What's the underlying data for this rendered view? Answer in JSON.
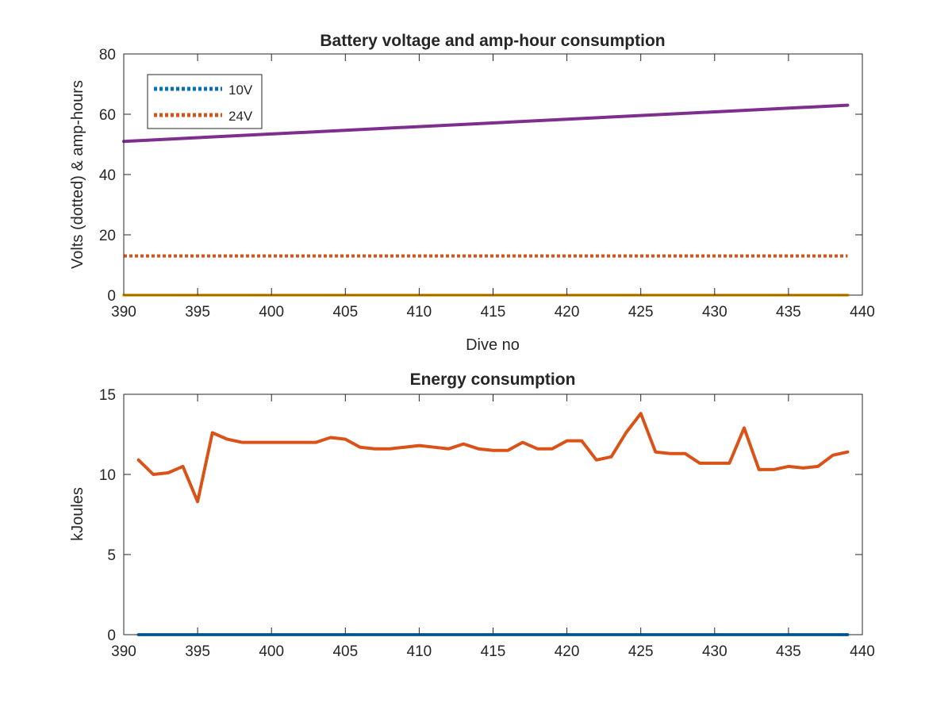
{
  "chart_data": [
    {
      "type": "line",
      "title": "Battery voltage and amp-hour consumption",
      "xlabel": "Dive no",
      "ylabel": "Volts (dotted) & amp-hours",
      "xlim": [
        390,
        440
      ],
      "ylim": [
        0,
        80
      ],
      "xticks": [
        390,
        395,
        400,
        405,
        410,
        415,
        420,
        425,
        430,
        435,
        440
      ],
      "yticks": [
        0,
        20,
        40,
        60,
        80
      ],
      "grid": false,
      "legend": {
        "placement": "top-left",
        "entries": [
          "10V",
          "24V"
        ]
      },
      "series": [
        {
          "name": "10V",
          "style": "dotted",
          "color": "#0072BD",
          "x": [
            390,
            439
          ],
          "y": [
            0,
            0
          ]
        },
        {
          "name": "24V",
          "style": "dotted",
          "color": "#D95319",
          "x": [
            390,
            439
          ],
          "y": [
            13,
            13
          ]
        },
        {
          "style": "solid",
          "color": "#EDB120",
          "x": [
            390,
            439
          ],
          "y": [
            0,
            0
          ]
        },
        {
          "style": "solid",
          "color": "#7E2F8E",
          "x": [
            390,
            439
          ],
          "y": [
            51,
            63
          ]
        }
      ]
    },
    {
      "type": "line",
      "title": "Energy consumption",
      "xlabel": "",
      "ylabel": "kJoules",
      "xlim": [
        390,
        440
      ],
      "ylim": [
        0,
        15
      ],
      "xticks": [
        390,
        395,
        400,
        405,
        410,
        415,
        420,
        425,
        430,
        435,
        440
      ],
      "yticks": [
        0,
        5,
        10,
        15
      ],
      "grid": false,
      "series": [
        {
          "style": "solid",
          "color": "#0072BD",
          "x": [
            391,
            439
          ],
          "y": [
            0,
            0
          ]
        },
        {
          "style": "solid",
          "color": "#D95319",
          "x": [
            391,
            392,
            393,
            394,
            395,
            396,
            397,
            398,
            399,
            400,
            401,
            402,
            403,
            404,
            405,
            406,
            407,
            408,
            409,
            410,
            411,
            412,
            413,
            414,
            415,
            416,
            417,
            418,
            419,
            420,
            421,
            422,
            423,
            424,
            425,
            426,
            427,
            428,
            429,
            430,
            431,
            432,
            433,
            434,
            435,
            436,
            437,
            438,
            439
          ],
          "y": [
            10.9,
            10.0,
            10.1,
            10.5,
            8.3,
            12.6,
            12.2,
            12.0,
            12.0,
            12.0,
            12.0,
            12.0,
            12.0,
            12.3,
            12.2,
            11.7,
            11.6,
            11.6,
            11.7,
            11.8,
            11.7,
            11.6,
            11.9,
            11.6,
            11.5,
            11.5,
            12.0,
            11.6,
            11.6,
            12.1,
            12.1,
            10.9,
            11.1,
            12.6,
            13.8,
            11.4,
            11.3,
            11.3,
            10.7,
            10.7,
            10.7,
            12.9,
            10.3,
            10.3,
            10.5,
            10.4,
            10.5,
            11.2,
            11.4
          ]
        }
      ]
    }
  ]
}
